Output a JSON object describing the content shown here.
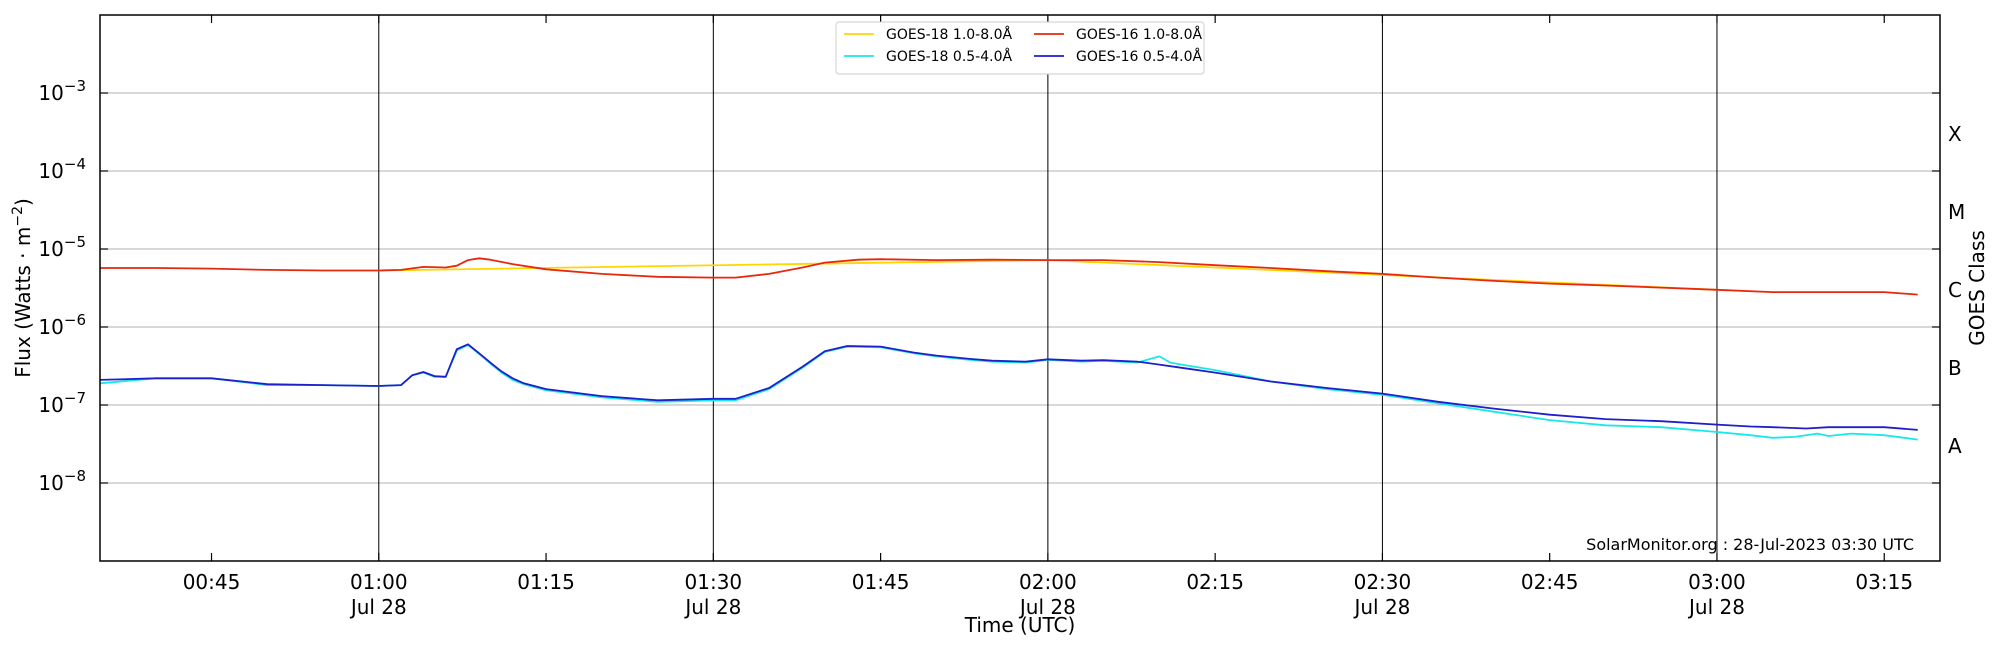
{
  "chart_data": {
    "type": "line",
    "title": "",
    "xlabel": "Time (UTC)",
    "ylabel_main": "Flux (Watts · m",
    "ylabel_sup": "−2",
    "ylabel_end": ")",
    "y2label": "GOES Class",
    "yscale": "log",
    "xlim": [
      "00:35",
      "03:20"
    ],
    "ylim": [
      1e-09,
      0.01
    ],
    "grid": "horizontal at each decade; vertical at each half hour",
    "legend_placement": "top-center",
    "credit": "SolarMonitor.org : 28-Jul-2023 03:30 UTC",
    "x_ticks": [
      {
        "time": "00:45",
        "label": "00:45",
        "sublabel": ""
      },
      {
        "time": "01:00",
        "label": "01:00",
        "sublabel": "Jul 28"
      },
      {
        "time": "01:15",
        "label": "01:15",
        "sublabel": ""
      },
      {
        "time": "01:30",
        "label": "01:30",
        "sublabel": "Jul 28"
      },
      {
        "time": "01:45",
        "label": "01:45",
        "sublabel": ""
      },
      {
        "time": "02:00",
        "label": "02:00",
        "sublabel": "Jul 28"
      },
      {
        "time": "02:15",
        "label": "02:15",
        "sublabel": ""
      },
      {
        "time": "02:30",
        "label": "02:30",
        "sublabel": "Jul 28"
      },
      {
        "time": "02:45",
        "label": "02:45",
        "sublabel": ""
      },
      {
        "time": "03:00",
        "label": "03:00",
        "sublabel": "Jul 28"
      },
      {
        "time": "03:15",
        "label": "03:15",
        "sublabel": ""
      }
    ],
    "y_ticks": [
      {
        "exp": -8,
        "label": "10",
        "sup": "−8"
      },
      {
        "exp": -7,
        "label": "10",
        "sup": "−7"
      },
      {
        "exp": -6,
        "label": "10",
        "sup": "−6"
      },
      {
        "exp": -5,
        "label": "10",
        "sup": "−5"
      },
      {
        "exp": -4,
        "label": "10",
        "sup": "−4"
      },
      {
        "exp": -3,
        "label": "10",
        "sup": "−3"
      }
    ],
    "goes_classes": [
      {
        "label": "A",
        "flux": 3e-08
      },
      {
        "label": "B",
        "flux": 3e-07
      },
      {
        "label": "C",
        "flux": 3e-06
      },
      {
        "label": "M",
        "flux": 3e-05
      },
      {
        "label": "X",
        "flux": 0.0003
      }
    ],
    "series": [
      {
        "name": "GOES-18 1.0-8.0Å",
        "color": "#FFD700",
        "x": [
          "01:00",
          "02:00",
          "03:00"
        ],
        "y": [
          5.3e-06,
          7.2e-06,
          3e-06
        ]
      },
      {
        "name": "GOES-16 1.0-8.0Å",
        "color": "#E8280C",
        "x": [
          "00:35",
          "00:40",
          "00:45",
          "00:50",
          "00:55",
          "01:00",
          "01:02",
          "01:04",
          "01:06",
          "01:07",
          "01:08",
          "01:09",
          "01:10",
          "01:12",
          "01:15",
          "01:20",
          "01:25",
          "01:30",
          "01:32",
          "01:35",
          "01:38",
          "01:40",
          "01:43",
          "01:45",
          "01:50",
          "01:55",
          "02:00",
          "02:05",
          "02:10",
          "02:15",
          "02:20",
          "02:25",
          "02:30",
          "02:35",
          "02:40",
          "02:45",
          "02:50",
          "02:55",
          "03:00",
          "03:05",
          "03:10",
          "03:15",
          "03:18"
        ],
        "y": [
          5.7e-06,
          5.7e-06,
          5.6e-06,
          5.4e-06,
          5.3e-06,
          5.3e-06,
          5.4e-06,
          5.9e-06,
          5.8e-06,
          6.1e-06,
          7.2e-06,
          7.6e-06,
          7.3e-06,
          6.4e-06,
          5.5e-06,
          4.8e-06,
          4.4e-06,
          4.3e-06,
          4.3e-06,
          4.8e-06,
          5.8e-06,
          6.7e-06,
          7.3e-06,
          7.4e-06,
          7.2e-06,
          7.3e-06,
          7.2e-06,
          7.2e-06,
          6.8e-06,
          6.2e-06,
          5.7e-06,
          5.2e-06,
          4.8e-06,
          4.3e-06,
          3.9e-06,
          3.6e-06,
          3.4e-06,
          3.2e-06,
          3e-06,
          2.8e-06,
          2.8e-06,
          2.8e-06,
          2.6e-06
        ]
      },
      {
        "name": "GOES-18 0.5-4.0Å",
        "color": "#19E8E8",
        "x": [
          "00:35",
          "00:40",
          "00:45",
          "00:50",
          "00:55",
          "01:00",
          "01:02",
          "01:03",
          "01:04",
          "01:05",
          "01:06",
          "01:07",
          "01:08",
          "01:09",
          "01:10",
          "01:11",
          "01:12",
          "01:13",
          "01:15",
          "01:20",
          "01:25",
          "01:30",
          "01:32",
          "01:35",
          "01:38",
          "01:40",
          "01:42",
          "01:45",
          "01:48",
          "01:50",
          "01:53",
          "01:55",
          "01:58",
          "02:00",
          "02:03",
          "02:05",
          "02:08",
          "02:10",
          "02:11",
          "02:12",
          "02:15",
          "02:20",
          "02:25",
          "02:30",
          "02:35",
          "02:40",
          "02:45",
          "02:50",
          "02:55",
          "03:00",
          "03:03",
          "03:05",
          "03:07",
          "03:09",
          "03:10",
          "03:12",
          "03:15",
          "03:18"
        ],
        "y": [
          1.9e-07,
          2.2e-07,
          2.2e-07,
          1.8e-07,
          1.8e-07,
          1.75e-07,
          1.8e-07,
          2.4e-07,
          2.6e-07,
          2.3e-07,
          2.3e-07,
          5e-07,
          5.9e-07,
          4.5e-07,
          3.4e-07,
          2.6e-07,
          2.1e-07,
          1.85e-07,
          1.55e-07,
          1.25e-07,
          1.1e-07,
          1.15e-07,
          1.15e-07,
          1.6e-07,
          3e-07,
          4.8e-07,
          5.6e-07,
          5.5e-07,
          4.6e-07,
          4.2e-07,
          3.8e-07,
          3.6e-07,
          3.5e-07,
          3.8e-07,
          3.6e-07,
          3.7e-07,
          3.5e-07,
          4.2e-07,
          3.5e-07,
          3.3e-07,
          2.8e-07,
          2e-07,
          1.6e-07,
          1.35e-07,
          1.05e-07,
          8.2e-08,
          6.4e-08,
          5.5e-08,
          5.2e-08,
          4.5e-08,
          4.1e-08,
          3.8e-08,
          3.9e-08,
          4.3e-08,
          4e-08,
          4.3e-08,
          4.1e-08,
          3.6e-08
        ]
      },
      {
        "name": "GOES-16 0.5-4.0Å",
        "color": "#1F1FCC",
        "x": [
          "00:35",
          "00:40",
          "00:45",
          "00:50",
          "00:55",
          "01:00",
          "01:02",
          "01:03",
          "01:04",
          "01:05",
          "01:06",
          "01:07",
          "01:08",
          "01:09",
          "01:10",
          "01:11",
          "01:12",
          "01:13",
          "01:15",
          "01:20",
          "01:25",
          "01:30",
          "01:32",
          "01:35",
          "01:38",
          "01:40",
          "01:42",
          "01:45",
          "01:48",
          "01:50",
          "01:53",
          "01:55",
          "01:58",
          "02:00",
          "02:03",
          "02:05",
          "02:08",
          "02:10",
          "02:12",
          "02:15",
          "02:20",
          "02:25",
          "02:30",
          "02:35",
          "02:40",
          "02:45",
          "02:50",
          "02:55",
          "03:00",
          "03:03",
          "03:05",
          "03:08",
          "03:10",
          "03:12",
          "03:15",
          "03:18"
        ],
        "y": [
          2.1e-07,
          2.2e-07,
          2.2e-07,
          1.85e-07,
          1.8e-07,
          1.75e-07,
          1.8e-07,
          2.4e-07,
          2.65e-07,
          2.35e-07,
          2.3e-07,
          5.2e-07,
          6e-07,
          4.6e-07,
          3.5e-07,
          2.7e-07,
          2.2e-07,
          1.9e-07,
          1.6e-07,
          1.3e-07,
          1.15e-07,
          1.2e-07,
          1.2e-07,
          1.65e-07,
          3.1e-07,
          4.9e-07,
          5.7e-07,
          5.6e-07,
          4.7e-07,
          4.3e-07,
          3.9e-07,
          3.7e-07,
          3.6e-07,
          3.85e-07,
          3.7e-07,
          3.75e-07,
          3.6e-07,
          3.3e-07,
          3e-07,
          2.6e-07,
          2e-07,
          1.65e-07,
          1.4e-07,
          1.1e-07,
          9e-08,
          7.5e-08,
          6.6e-08,
          6.2e-08,
          5.6e-08,
          5.3e-08,
          5.2e-08,
          5e-08,
          5.2e-08,
          5.2e-08,
          5.2e-08,
          4.8e-08
        ]
      }
    ]
  }
}
